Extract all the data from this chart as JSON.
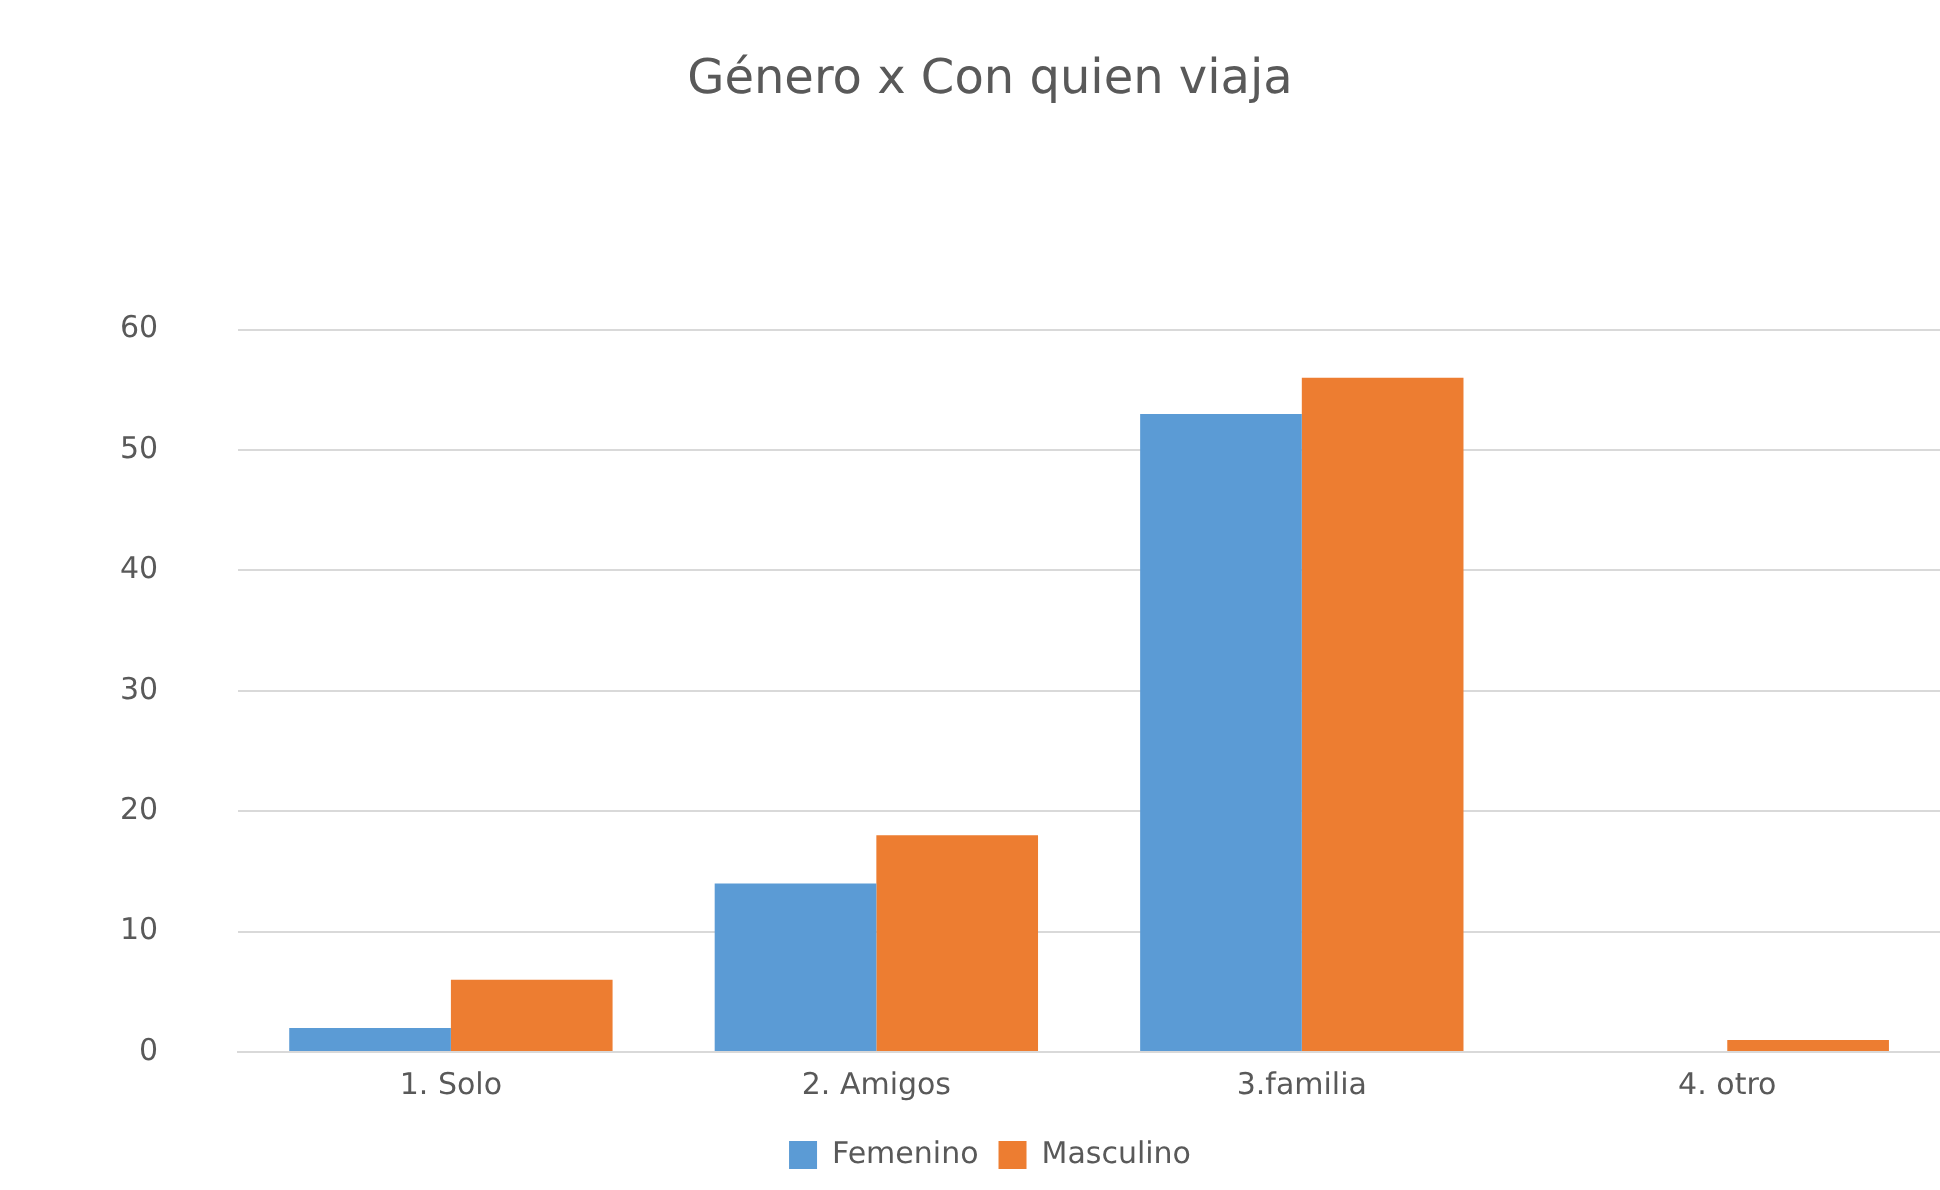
{
  "chart_data": {
    "type": "bar",
    "title": "Género x Con quien viaja",
    "categories": [
      "1. Solo",
      "2. Amigos",
      "3.familia",
      "4. otro"
    ],
    "series": [
      {
        "name": "Femenino",
        "color": "#5b9bd5",
        "values": [
          2,
          14,
          53,
          0
        ]
      },
      {
        "name": "Masculino",
        "color": "#ed7d31",
        "values": [
          6,
          18,
          56,
          1
        ]
      }
    ],
    "ylim": [
      0,
      60
    ],
    "yticks": [
      0,
      10,
      20,
      30,
      40,
      50,
      60
    ],
    "grid": "y",
    "legend": "bottom"
  }
}
